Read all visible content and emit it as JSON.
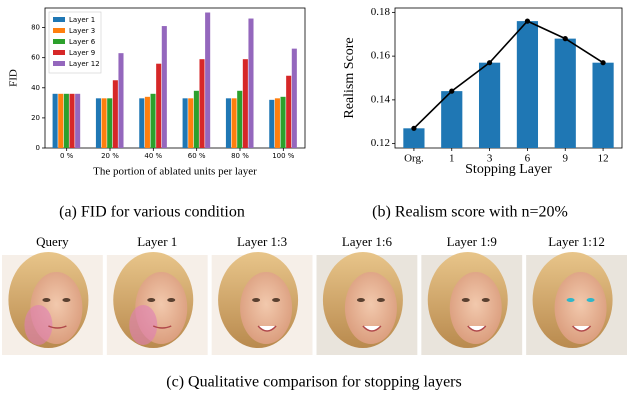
{
  "chart_data": [
    {
      "type": "bar",
      "caption": "(a) FID for various condition",
      "y_label": "FID",
      "x_label": "The portion of ablated units per layer",
      "categories": [
        "0 %",
        "20 %",
        "40 %",
        "60 %",
        "80 %",
        "100 %"
      ],
      "series": [
        {
          "name": "Layer 1",
          "color": "#1f77b4",
          "values": [
            36,
            33,
            33,
            33,
            33,
            32
          ]
        },
        {
          "name": "Layer 3",
          "color": "#ff7f0e",
          "values": [
            36,
            33,
            34,
            33,
            33,
            33
          ]
        },
        {
          "name": "Layer 6",
          "color": "#2ca02c",
          "values": [
            36,
            33,
            36,
            38,
            38,
            34
          ]
        },
        {
          "name": "Layer 9",
          "color": "#d62728",
          "values": [
            36,
            45,
            56,
            59,
            59,
            48
          ]
        },
        {
          "name": "Layer 12",
          "color": "#9467bd",
          "values": [
            36,
            63,
            81,
            90,
            86,
            66
          ]
        }
      ],
      "ylim": [
        0,
        93
      ],
      "yticks": [
        0,
        20,
        40,
        60,
        80
      ],
      "legend": "upper left"
    },
    {
      "type": "bar",
      "caption": "(b) Realism score with n=20%",
      "y_label": "Realism Score",
      "x_label": "Stopping Layer",
      "categories": [
        "Org.",
        "1",
        "3",
        "6",
        "9",
        "12"
      ],
      "values": [
        0.127,
        0.144,
        0.157,
        0.176,
        0.168,
        0.157
      ],
      "color": "#1f77b4",
      "line_color": "#000000",
      "ylim": [
        0.118,
        0.182
      ],
      "yticks": [
        0.12,
        0.14,
        0.16,
        0.18
      ]
    }
  ],
  "figure_c": {
    "caption": "(c) Qualitative comparison for stopping layers",
    "labels": [
      "Query",
      "Layer 1",
      "Layer 1:3",
      "Layer 1:6",
      "Layer 1:9",
      "Layer 1:12"
    ]
  }
}
